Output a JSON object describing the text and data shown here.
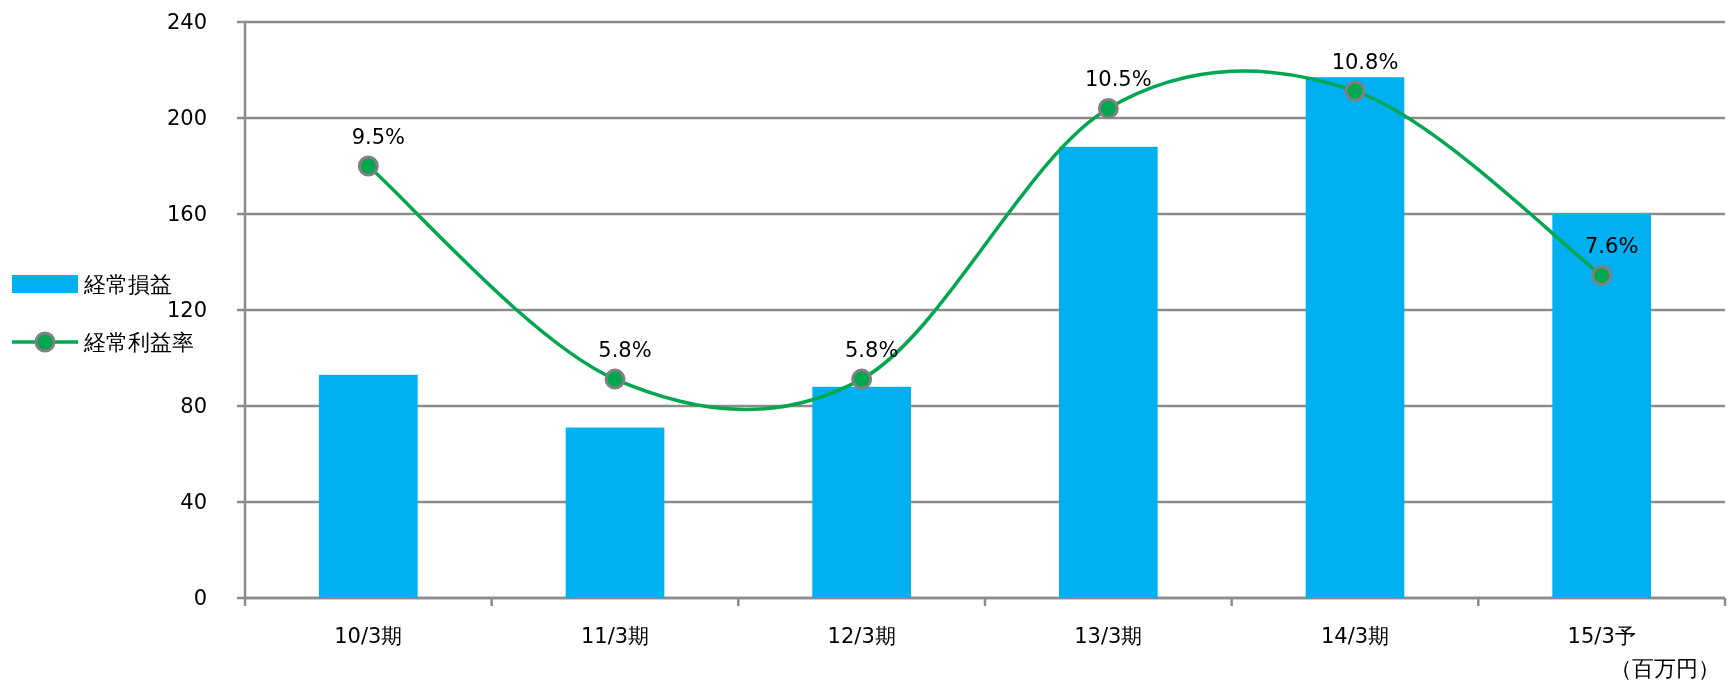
{
  "chart_data": {
    "type": "bar",
    "categories": [
      "10/3期",
      "11/3期",
      "12/3期",
      "13/3期",
      "14/3期",
      "15/3予"
    ],
    "series": [
      {
        "name": "経常損益",
        "color": "#00b0f0",
        "values": [
          93,
          71,
          88,
          188,
          217,
          160
        ]
      },
      {
        "name": "経常利益率",
        "type": "line",
        "axis": "y2",
        "color": "#00a650",
        "values": [
          9.5,
          5.8,
          5.8,
          10.5,
          10.8,
          7.6
        ],
        "value_labels": [
          "9.5%",
          "5.8%",
          "5.8%",
          "10.5%",
          "10.8%",
          "7.6%"
        ]
      }
    ],
    "ylim": [
      0,
      240
    ],
    "yticks": [
      0,
      40,
      80,
      120,
      160,
      200,
      240
    ],
    "y2lim": [
      2,
      12
    ],
    "grid": "y",
    "legend": "left",
    "marker": "circle",
    "annotations": [
      "（百万円）"
    ]
  }
}
